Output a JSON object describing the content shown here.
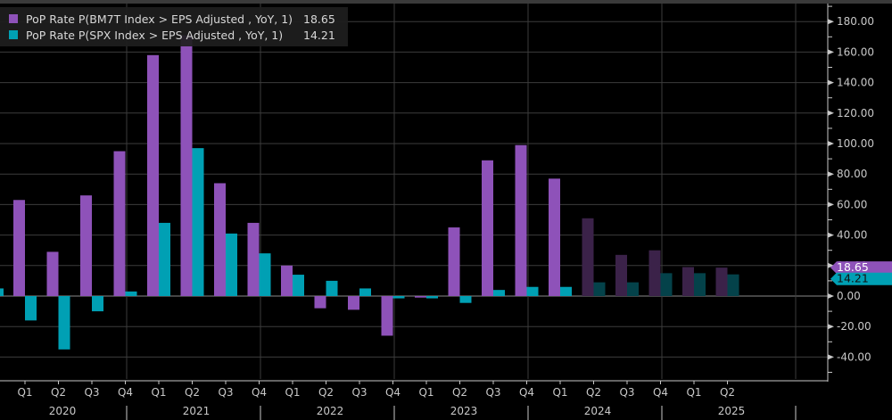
{
  "legend": [
    {
      "label": "PoP Rate P(BM7T Index > EPS Adjusted , YoY, 1)",
      "value": "18.65",
      "color": "#8e52b9"
    },
    {
      "label": "PoP Rate P(SPX Index > EPS Adjusted , YoY, 1)",
      "value": "14.21",
      "color": "#00a0b4"
    }
  ],
  "axis_badges": [
    {
      "value": "18.65",
      "color": "#8e52b9",
      "text_color": "#ffffff"
    },
    {
      "value": "14.21",
      "color": "#00a0b4",
      "text_color": "#111111"
    }
  ],
  "chart_data": {
    "type": "bar",
    "title": "",
    "xlabel": "",
    "ylabel": "",
    "ylim": [
      -55,
      185
    ],
    "yticks": [
      -40,
      -20,
      0,
      20,
      40,
      60,
      80,
      100,
      120,
      140,
      160,
      180
    ],
    "ytick_labels": [
      "-40.00",
      "-20.00",
      "0.00",
      "20.00",
      "40.00",
      "60.00",
      "80.00",
      "100.00",
      "120.00",
      "140.00",
      "160.00",
      "180.00"
    ],
    "grid": true,
    "legend_position": "top-left",
    "y_axis_position": "right",
    "categories": [
      "Q1 2020",
      "Q2 2020",
      "Q3 2020",
      "Q4 2020",
      "Q1 2021",
      "Q2 2021",
      "Q3 2021",
      "Q4 2021",
      "Q1 2022",
      "Q2 2022",
      "Q3 2022",
      "Q4 2022",
      "Q1 2023",
      "Q2 2023",
      "Q3 2023",
      "Q4 2023",
      "Q1 2024",
      "Q2 2024",
      "Q3 2024",
      "Q4 2024",
      "Q1 2025",
      "Q2 2025"
    ],
    "quarter_labels": [
      "Q1",
      "Q2",
      "Q3",
      "Q4",
      "Q1",
      "Q2",
      "Q3",
      "Q4",
      "Q1",
      "Q2",
      "Q3",
      "Q4",
      "Q1",
      "Q2",
      "Q3",
      "Q4",
      "Q1",
      "Q2",
      "Q3",
      "Q4",
      "Q1",
      "Q2"
    ],
    "year_labels": [
      "2020",
      "2021",
      "2022",
      "2023",
      "2024",
      "2025"
    ],
    "estimate_start_index": 17,
    "series": [
      {
        "name": "PoP Rate P(BM7T Index > EPS Adjusted , YoY, 1)",
        "color": "#8e52b9",
        "dim_color": "#3b2249",
        "values": [
          63,
          29,
          66,
          95,
          158,
          171,
          74,
          48,
          20,
          -8,
          -9,
          -26,
          -1,
          45,
          89,
          99,
          77,
          51,
          27,
          30,
          19,
          18.65
        ]
      },
      {
        "name": "PoP Rate P(SPX Index > EPS Adjusted , YoY, 1)",
        "color": "#00a0b4",
        "dim_color": "#04424a",
        "prior_value_Q4_2019": 5,
        "values": [
          -16,
          -35,
          -10,
          3,
          48,
          97,
          41,
          28,
          14,
          10,
          5,
          -1.5,
          -1.5,
          -4.5,
          4,
          6,
          6,
          9,
          9,
          15,
          15,
          14.21
        ]
      }
    ]
  }
}
